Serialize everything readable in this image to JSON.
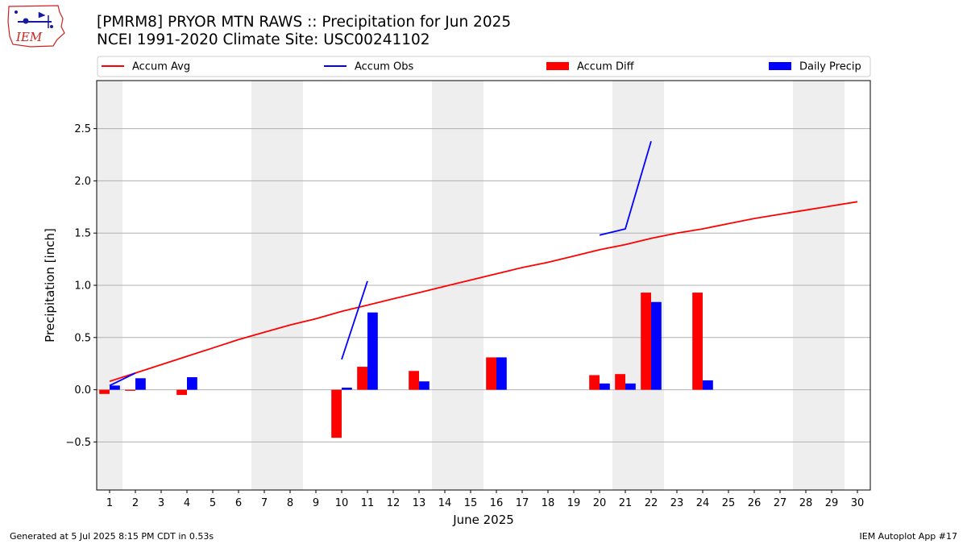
{
  "header": {
    "title_line1": "[PMRM8] PRYOR MTN RAWS :: Precipitation for Jun 2025",
    "title_line2": "NCEI 1991-2020 Climate Site: USC00241102",
    "logo_text": "IEM"
  },
  "footer": {
    "left": "Generated at 5 Jul 2025 8:15 PM CDT in 0.53s",
    "right": "IEM Autoplot App #17"
  },
  "colors": {
    "accum_avg": "#ff0000",
    "accum_obs": "#0000ff",
    "accum_diff": "#ff0000",
    "daily_precip": "#0000ff",
    "weekend_shade": "#eeeeee",
    "grid": "#b0b0b0"
  },
  "chart_data": {
    "type": "bar",
    "xlabel": "June 2025",
    "ylabel": "Precipitation [inch]",
    "xlim": [
      0.5,
      30.5
    ],
    "ylim": [
      -0.96,
      2.96
    ],
    "yticks": [
      -0.5,
      0.0,
      0.5,
      1.0,
      1.5,
      2.0,
      2.5
    ],
    "ytick_labels": [
      "−0.5",
      "0.0",
      "0.5",
      "1.0",
      "1.5",
      "2.0",
      "2.5"
    ],
    "xticks": [
      1,
      2,
      3,
      4,
      5,
      6,
      7,
      8,
      9,
      10,
      11,
      12,
      13,
      14,
      15,
      16,
      17,
      18,
      19,
      20,
      21,
      22,
      23,
      24,
      25,
      26,
      27,
      28,
      29,
      30
    ],
    "grid": "horizontal",
    "legend": {
      "placement": "top",
      "entries": [
        {
          "label": "Accum Avg",
          "kind": "line",
          "color": "#ff0000"
        },
        {
          "label": "Accum Obs",
          "kind": "line",
          "color": "#0000ff"
        },
        {
          "label": "Accum Diff",
          "kind": "bar",
          "color": "#ff0000"
        },
        {
          "label": "Daily Precip",
          "kind": "bar",
          "color": "#0000ff"
        }
      ]
    },
    "weekend_days": [
      1,
      7,
      8,
      14,
      15,
      21,
      22,
      28,
      29
    ],
    "accum_avg": {
      "x": [
        1,
        2,
        3,
        4,
        5,
        6,
        7,
        8,
        9,
        10,
        11,
        12,
        13,
        14,
        15,
        16,
        17,
        18,
        19,
        20,
        21,
        22,
        23,
        24,
        25,
        26,
        27,
        28,
        29,
        30
      ],
      "values": [
        0.08,
        0.16,
        0.24,
        0.32,
        0.4,
        0.48,
        0.55,
        0.62,
        0.68,
        0.75,
        0.81,
        0.87,
        0.93,
        0.99,
        1.05,
        1.11,
        1.17,
        1.22,
        1.28,
        1.34,
        1.39,
        1.45,
        1.5,
        1.54,
        1.59,
        1.64,
        1.68,
        1.72,
        1.76,
        1.8
      ]
    },
    "accum_obs": [
      {
        "x": [
          1,
          2
        ],
        "values": [
          0.04,
          0.16
        ]
      },
      {
        "x": [
          10,
          11
        ],
        "values": [
          0.29,
          1.04
        ]
      },
      {
        "x": [
          20,
          21,
          22
        ],
        "values": [
          1.48,
          1.54,
          2.38
        ]
      }
    ],
    "accum_diff": {
      "x": [
        1,
        2,
        4,
        10,
        11,
        13,
        16,
        20,
        21,
        22,
        24
      ],
      "values": [
        -0.04,
        -0.01,
        -0.05,
        -0.46,
        0.22,
        0.18,
        0.31,
        0.14,
        0.15,
        0.93,
        0.93
      ]
    },
    "daily_precip": {
      "x": [
        1,
        2,
        4,
        10,
        11,
        13,
        16,
        20,
        21,
        22,
        24
      ],
      "values": [
        0.04,
        0.11,
        0.12,
        0.02,
        0.74,
        0.08,
        0.31,
        0.06,
        0.06,
        0.84,
        0.09
      ]
    }
  }
}
